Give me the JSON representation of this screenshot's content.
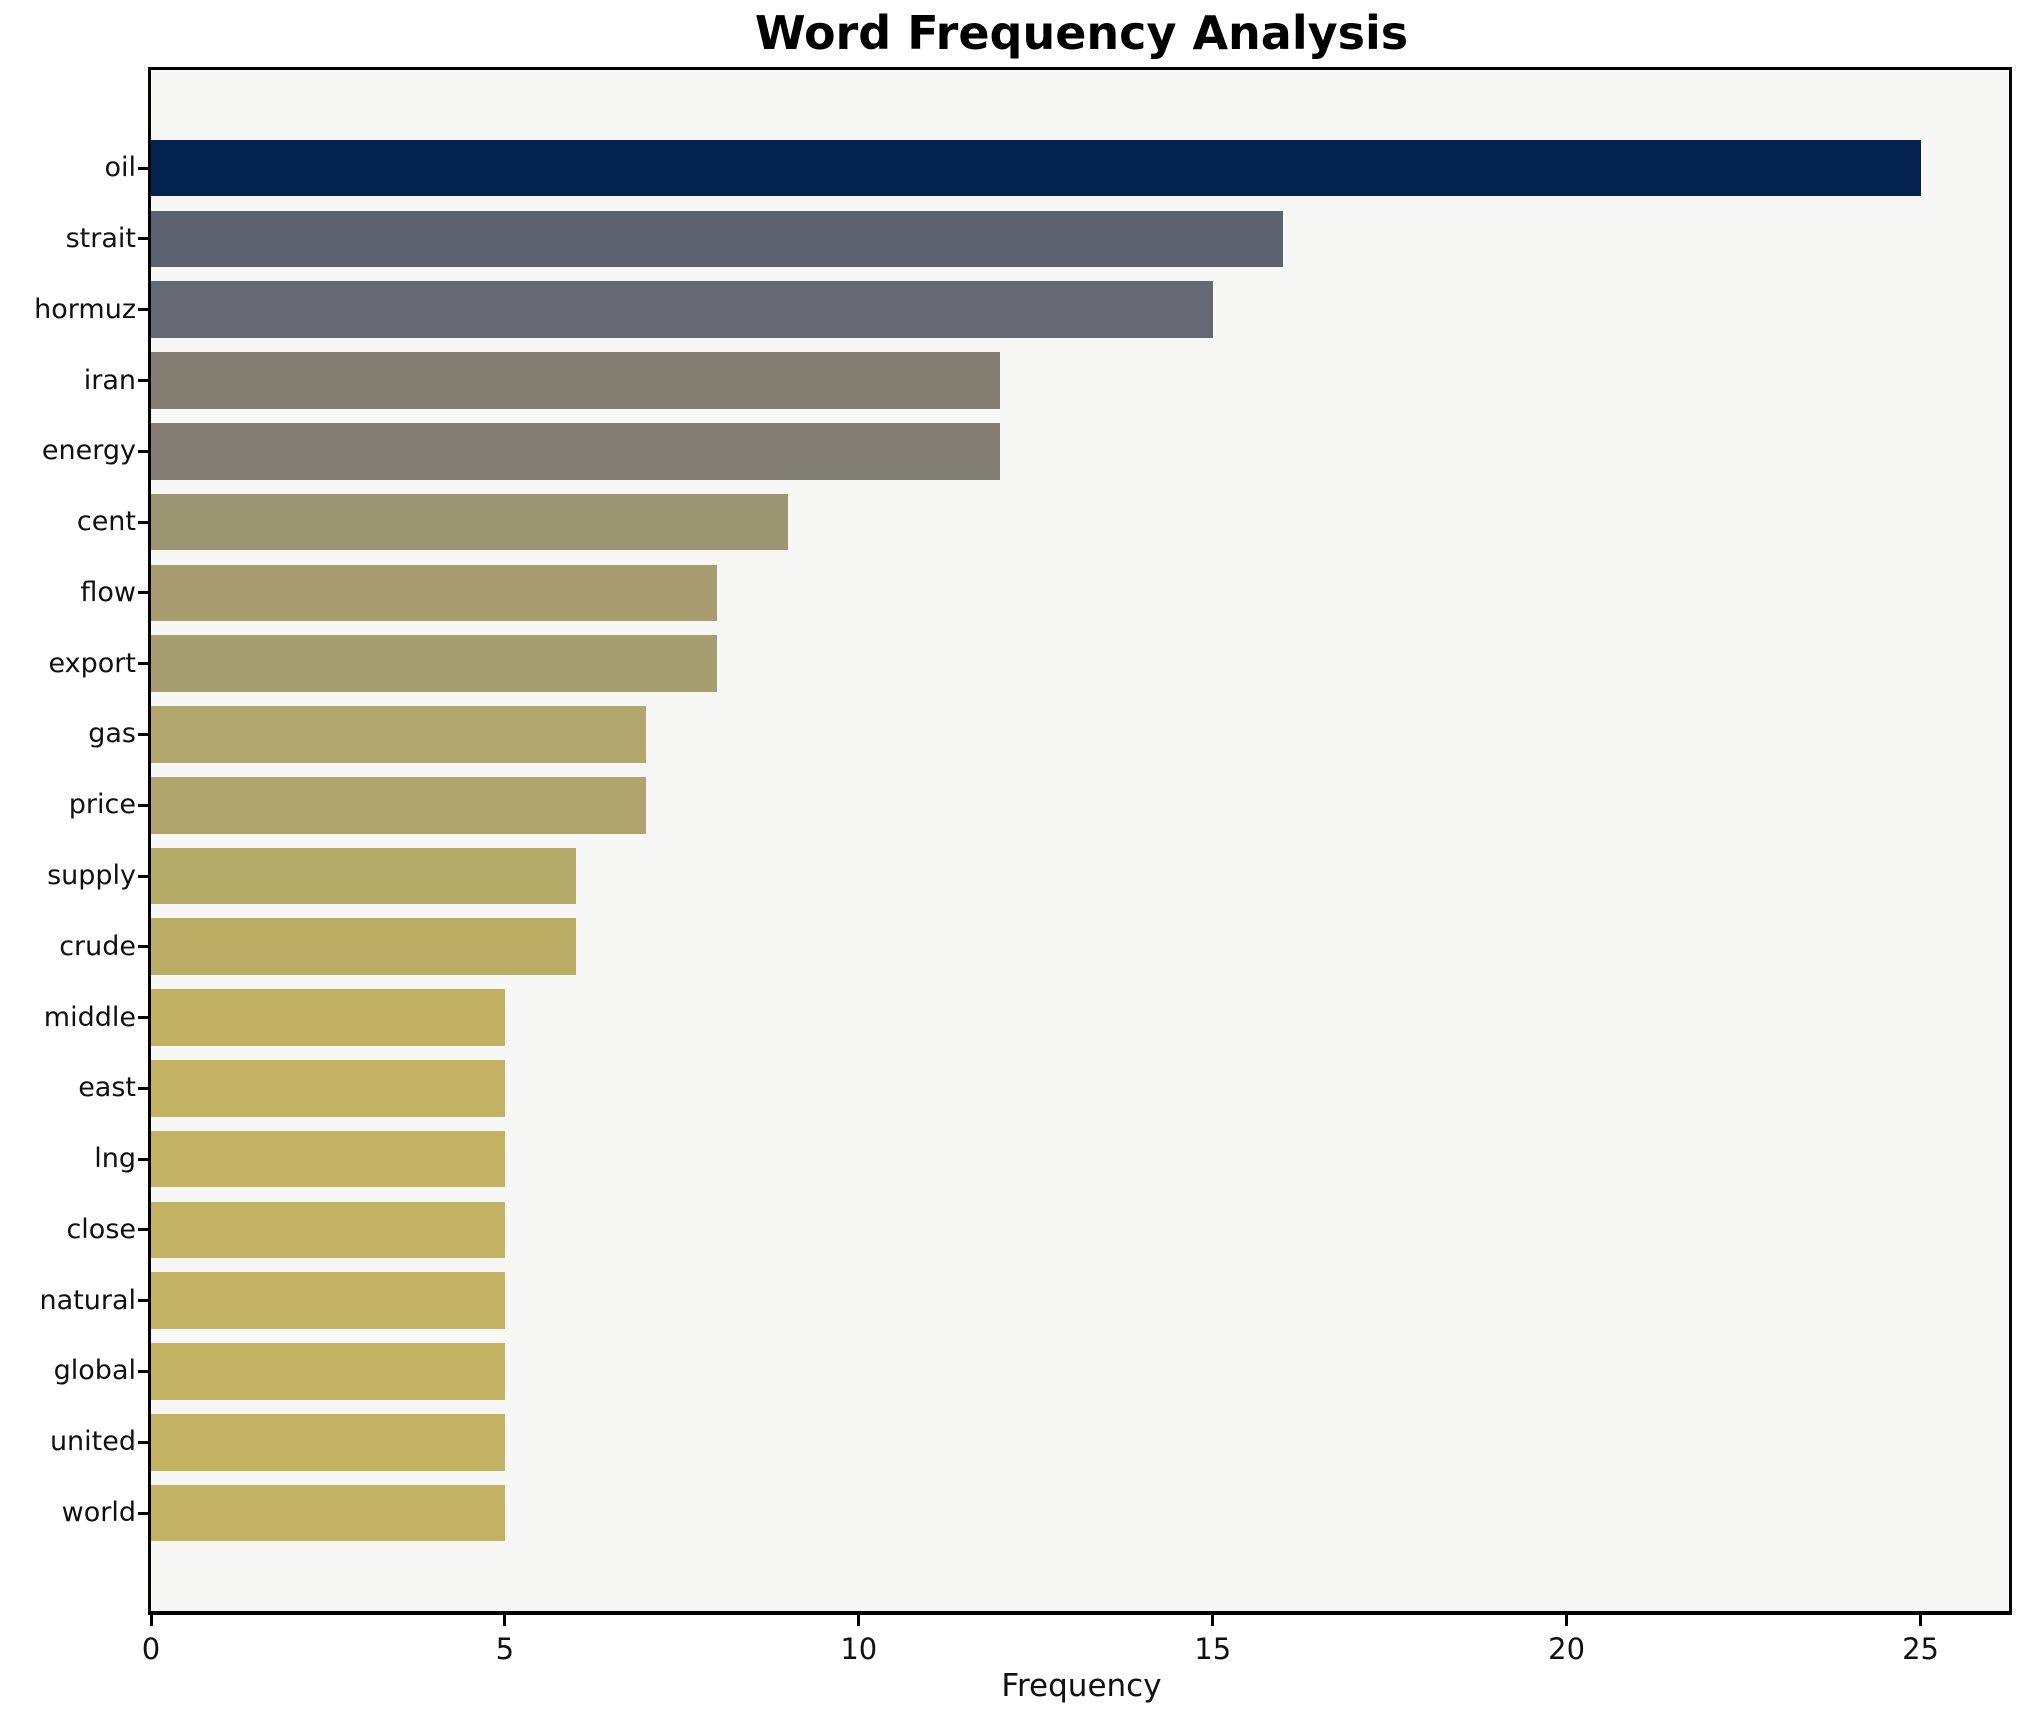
{
  "chart_data": {
    "type": "bar",
    "orientation": "horizontal",
    "title": "Word Frequency Analysis",
    "xlabel": "Frequency",
    "ylabel": "",
    "categories": [
      "oil",
      "strait",
      "hormuz",
      "iran",
      "energy",
      "cent",
      "flow",
      "export",
      "gas",
      "price",
      "supply",
      "crude",
      "middle",
      "east",
      "lng",
      "close",
      "natural",
      "global",
      "united",
      "world"
    ],
    "values": [
      25,
      16,
      15,
      12,
      12,
      9,
      8,
      8,
      7,
      7,
      6,
      6,
      5,
      5,
      5,
      5,
      5,
      5,
      5,
      5
    ],
    "bar_colors": [
      "#032250",
      "#5d6270",
      "#646974",
      "#817e72",
      "#827e73",
      "#9c9571",
      "#a79d71",
      "#a69d70",
      "#b1a76c",
      "#b0a56e",
      "#b4aa68",
      "#b9ad66",
      "#c2b160",
      "#c3b261",
      "#c3b261",
      "#c3b261",
      "#c3b261",
      "#c3b261",
      "#c3b261",
      "#c3b261"
    ],
    "xlim": [
      0,
      26.25
    ],
    "xticks": [
      0,
      5,
      10,
      15,
      20,
      25
    ],
    "grid": false,
    "legend_position": "none",
    "plot_background": "#f7f7f6",
    "figure_background": "#ffffff",
    "axis_color": "#000000",
    "text_color": "#101010"
  }
}
